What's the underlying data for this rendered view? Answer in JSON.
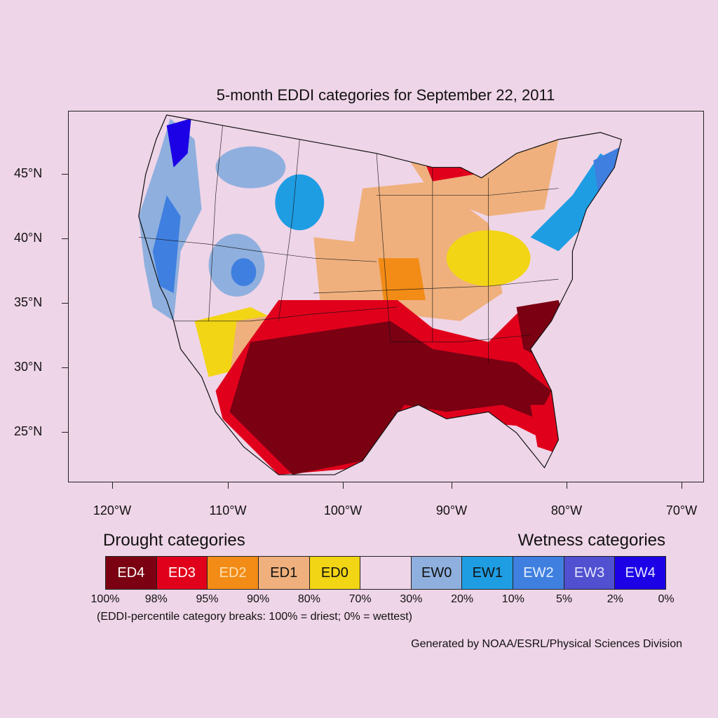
{
  "title": "5-month EDDI categories for September 22, 2011",
  "y_axis_labels": [
    "45°N",
    "40°N",
    "35°N",
    "30°N",
    "25°N"
  ],
  "x_axis_labels": [
    "120°W",
    "110°W",
    "100°W",
    "90°W",
    "80°W",
    "70°W"
  ],
  "legend": {
    "drought_heading": "Drought categories",
    "wetness_heading": "Wetness categories",
    "categories": [
      {
        "label": "ED4",
        "color": "#7a0012",
        "text_color": "#ffffff"
      },
      {
        "label": "ED3",
        "color": "#e1001c",
        "text_color": "#ffffff"
      },
      {
        "label": "ED2",
        "color": "#f28c17",
        "text_color": "#ffe0b0"
      },
      {
        "label": "ED1",
        "color": "#efb07d",
        "text_color": "#111111"
      },
      {
        "label": "ED0",
        "color": "#f2d515",
        "text_color": "#111111"
      },
      {
        "label": "",
        "color": "#efd5e8",
        "text_color": "#111111"
      },
      {
        "label": "EW0",
        "color": "#8fb0de",
        "text_color": "#111111"
      },
      {
        "label": "EW1",
        "color": "#1f9de3",
        "text_color": "#111111"
      },
      {
        "label": "EW2",
        "color": "#3f7fe0",
        "text_color": "#e6f0ff"
      },
      {
        "label": "EW3",
        "color": "#5050d0",
        "text_color": "#e6e6ff"
      },
      {
        "label": "EW4",
        "color": "#1c00e6",
        "text_color": "#e6e6ff"
      }
    ],
    "breaks": [
      "100%",
      "98%",
      "95%",
      "90%",
      "80%",
      "70%",
      "30%",
      "20%",
      "10%",
      "5%",
      "2%",
      "0%"
    ],
    "note": "(EDDI-percentile category breaks: 100% = driest; 0% = wettest)"
  },
  "credit": "Generated by NOAA/ESRL/Physical Sciences Division"
}
